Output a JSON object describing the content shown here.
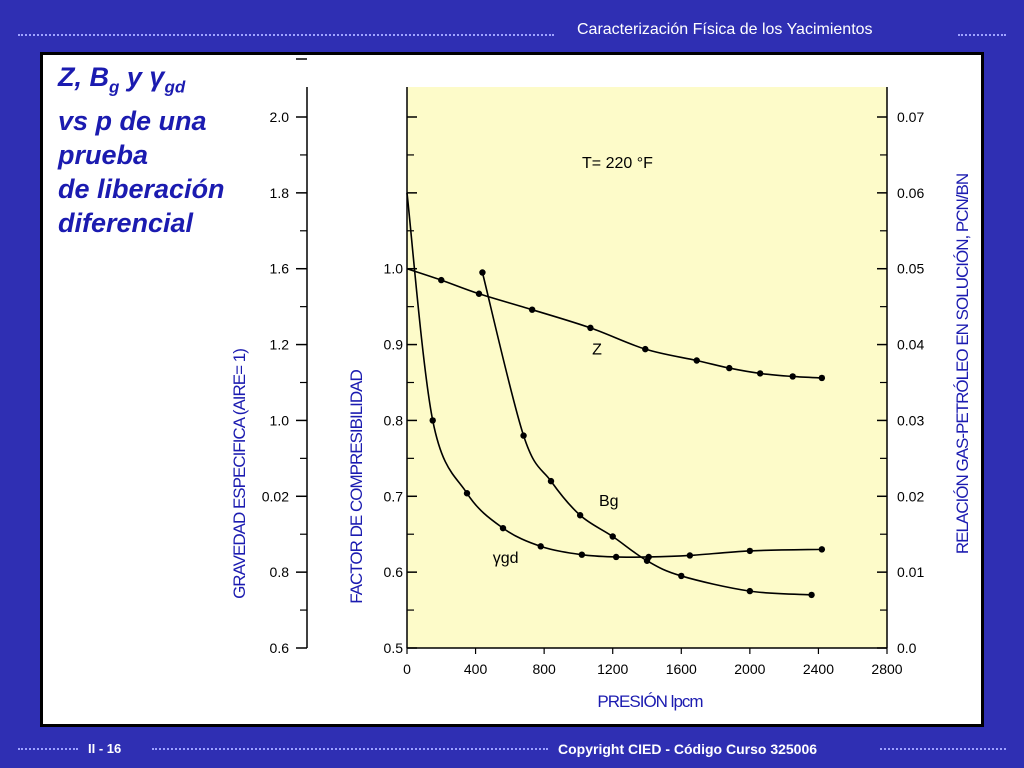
{
  "header": {
    "title": "Caracterización Física de los Yacimientos"
  },
  "slide": {
    "title_line1_pre": "Z, B",
    "title_line1_sub1": "g",
    "title_line1_mid": " y ",
    "title_line1_gamma": "γ",
    "title_line1_sub2": "gd",
    "title_line2": "vs p de una",
    "title_line3": "prueba",
    "title_line4": "de liberación",
    "title_line5": "diferencial"
  },
  "footer": {
    "page": "II - 16",
    "copyright": "Copyright CIED - Código Curso 325006"
  },
  "colors": {
    "background": "#2f2fb3",
    "plot_bg": "#fdfbc9",
    "title": "#1b1bb0"
  },
  "chart_data": {
    "type": "line",
    "xlabel": "PRESIÓN  lpcm",
    "x_ticks": [
      0,
      400,
      800,
      1200,
      1600,
      2000,
      2400,
      2800
    ],
    "xlim": [
      0,
      2800
    ],
    "annotation": "T= 220 °F",
    "axes": {
      "gravity": {
        "label": "GRAVEDAD ESPECIFICA (AIRE= 1)",
        "tick_labels": [
          "0.6",
          "0.8",
          "0.02",
          "1.0",
          "1.2",
          "1.6",
          "1.8",
          "2.0"
        ]
      },
      "z_factor": {
        "label": "FACTOR DE COMPRESIBILIDAD",
        "tick_labels": [
          "0.5",
          "0.6",
          "0.7",
          "0.8",
          "0.9",
          "1.0"
        ],
        "ylim": [
          0.5,
          1.2
        ]
      },
      "rs": {
        "label": "RELACIÓN GAS-PETRÓLEO EN SOLUCIÓN, PCN/BN",
        "tick_labels": [
          "0.0",
          "0.01",
          "0.02",
          "0.03",
          "0.04",
          "0.05",
          "0.06",
          "0.07"
        ],
        "ylim": [
          0,
          0.07
        ]
      }
    },
    "series": [
      {
        "name": "Z",
        "axis": "z_factor",
        "x": [
          0,
          200,
          420,
          730,
          1070,
          1390,
          1690,
          1880,
          2060,
          2250,
          2420
        ],
        "y": [
          1.0,
          0.985,
          0.967,
          0.946,
          0.922,
          0.894,
          0.879,
          0.869,
          0.862,
          0.858,
          0.856
        ],
        "label_x": 1080,
        "label_y": 0.895,
        "label_text": "Z"
      },
      {
        "name": "Bg",
        "axis": "rs",
        "x": [
          440,
          680,
          840,
          1010,
          1200,
          1400,
          1600,
          2000,
          2360
        ],
        "y": [
          0.0495,
          0.028,
          0.022,
          0.0175,
          0.0147,
          0.0115,
          0.0095,
          0.0075,
          0.007
        ],
        "label_x": 1120,
        "label_y": 0.0195,
        "label_text": "Bg"
      },
      {
        "name": "γgd",
        "axis": "z_factor",
        "x": [
          0,
          150,
          350,
          560,
          780,
          1020,
          1220,
          1410,
          1650,
          2000,
          2420
        ],
        "y": [
          1.1,
          0.8,
          0.704,
          0.658,
          0.634,
          0.623,
          0.62,
          0.62,
          0.622,
          0.628,
          0.63
        ],
        "label_x": 500,
        "label_y": 0.62,
        "label_text": "γgd"
      }
    ]
  }
}
